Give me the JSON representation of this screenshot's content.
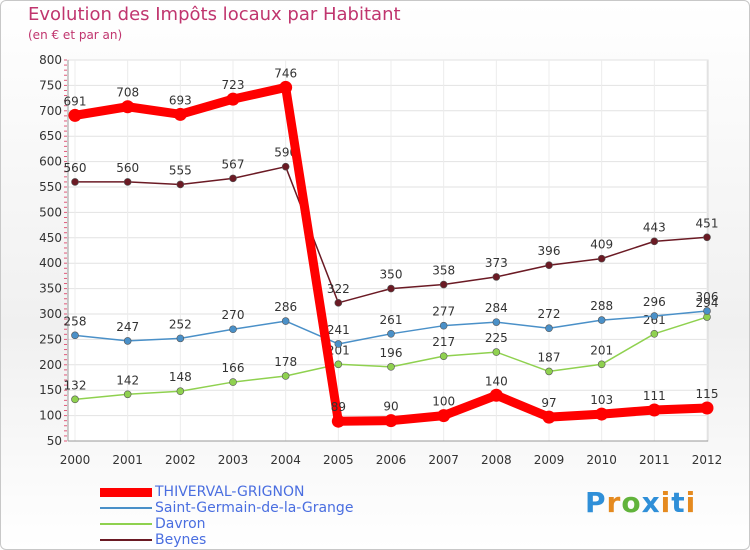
{
  "header": {
    "title": "Evolution des Impôts locaux par Habitant",
    "subtitle": "(en € et par an)"
  },
  "logo_text": "Proxiti",
  "chart_data": {
    "type": "line",
    "x": [
      "2000",
      "2001",
      "2002",
      "2003",
      "2004",
      "2005",
      "2006",
      "2007",
      "2008",
      "2009",
      "2010",
      "2011",
      "2012"
    ],
    "ylim": [
      50,
      800
    ],
    "yticks": [
      50,
      100,
      150,
      200,
      250,
      300,
      350,
      400,
      450,
      500,
      550,
      600,
      650,
      700,
      750,
      800
    ],
    "grid": true,
    "legend_position": "bottom-left",
    "series": [
      {
        "name": "THIVERVAL-GRIGNON",
        "color": "#ff0000",
        "values": [
          691,
          708,
          693,
          723,
          746,
          89,
          90,
          100,
          140,
          97,
          103,
          111,
          115
        ],
        "labels": [
          "691",
          "708",
          "693",
          "723",
          "746",
          "89",
          "90",
          "100",
          "140",
          "97",
          "103",
          "111",
          "115"
        ]
      },
      {
        "name": "Saint-Germain-de-la-Grange",
        "color": "#4a90c8",
        "values": [
          258,
          247,
          252,
          270,
          286,
          241,
          261,
          277,
          284,
          272,
          288,
          296,
          306
        ],
        "labels": [
          "258",
          "247",
          "252",
          "270",
          "286",
          "241",
          "261",
          "277",
          "284",
          "272",
          "288",
          "296",
          "306"
        ]
      },
      {
        "name": "Davron",
        "color": "#8fd14f",
        "values": [
          132,
          142,
          148,
          166,
          178,
          201,
          196,
          217,
          225,
          187,
          201,
          261,
          294
        ],
        "labels": [
          "132",
          "142",
          "148",
          "166",
          "178",
          "201",
          "196",
          "217",
          "225",
          "187",
          "201",
          "261",
          "294"
        ]
      },
      {
        "name": "Beynes",
        "color": "#6b1a24",
        "values": [
          560,
          560,
          555,
          567,
          590,
          322,
          350,
          358,
          373,
          396,
          409,
          443,
          451
        ],
        "labels": [
          "560",
          "560",
          "555",
          "567",
          "590",
          "322",
          "350",
          "358",
          "373",
          "396",
          "409",
          "443",
          "451"
        ]
      }
    ]
  }
}
